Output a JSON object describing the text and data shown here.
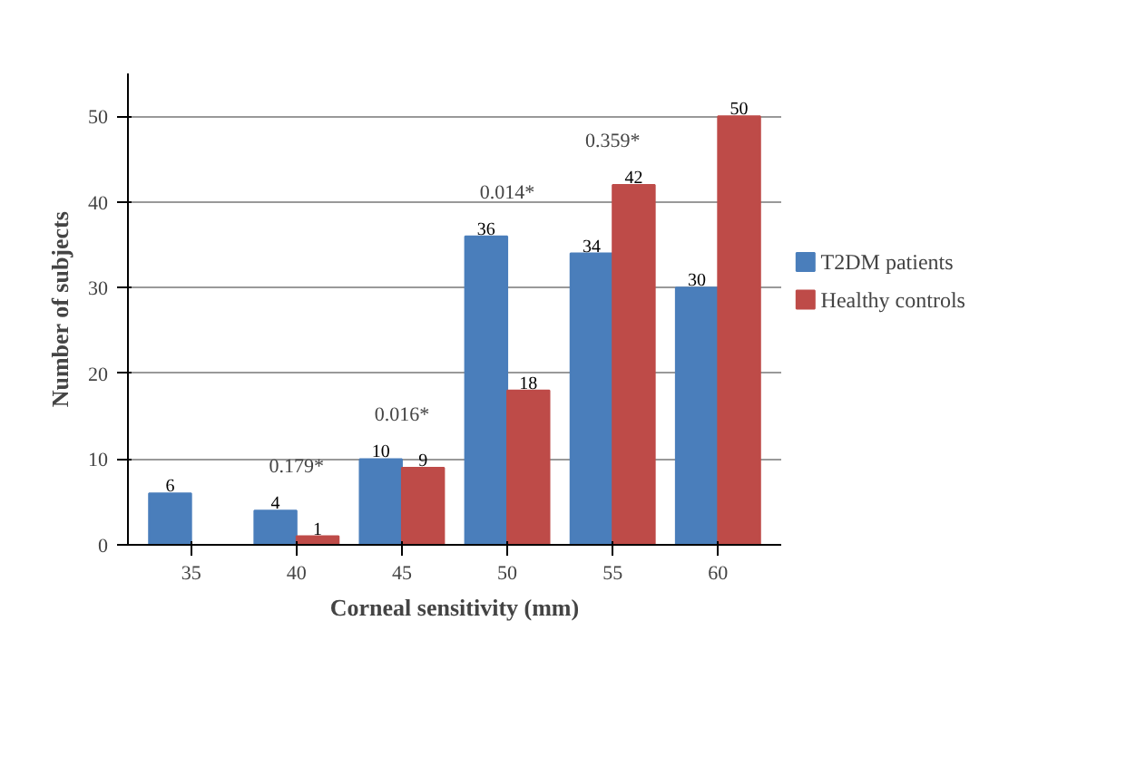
{
  "chart_data": {
    "type": "bar",
    "xlabel": "Corneal sensitivity (mm)",
    "ylabel": "Number of subjects",
    "categories": [
      "35",
      "40",
      "45",
      "50",
      "55",
      "60"
    ],
    "series": [
      {
        "name": "T2DM patients",
        "color": "#4a7ebb",
        "values": [
          6,
          4,
          10,
          36,
          34,
          30
        ]
      },
      {
        "name": "Healthy controls",
        "color": "#be4b48",
        "values": [
          null,
          1,
          9,
          18,
          42,
          50
        ]
      }
    ],
    "data_labels": true,
    "ylim": [
      0,
      55
    ],
    "yticks": [
      0,
      10,
      20,
      30,
      40,
      50
    ],
    "grid": "y",
    "legend": "right",
    "annotations": [
      "0.179*",
      "0.016*",
      "0.014*",
      "0.359*"
    ]
  }
}
